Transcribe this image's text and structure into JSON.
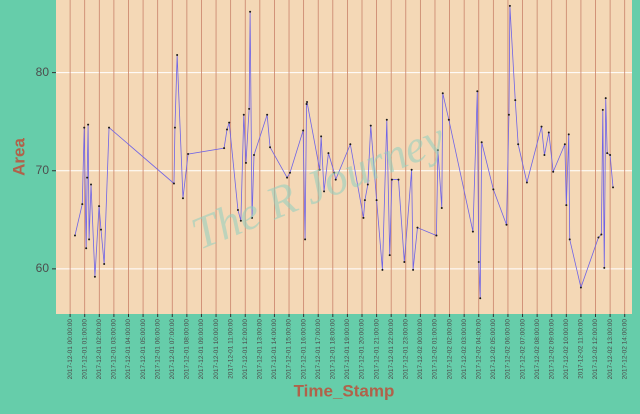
{
  "chart_data": {
    "type": "line",
    "x_label": "Time_Stamp",
    "y_label": "Area",
    "annotation": "The R Journey",
    "series": [
      {
        "name": "Area",
        "color": "#6f63e6",
        "point_color": "#1a1a1a",
        "x": [
          "2017-12-01 00:20:00",
          "2017-12-01 00:50:00",
          "2017-12-01 00:58:00",
          "2017-12-01 01:06:00",
          "2017-12-01 01:10:00",
          "2017-12-01 01:14:00",
          "2017-12-01 01:18:00",
          "2017-12-01 01:26:00",
          "2017-12-01 01:42:00",
          "2017-12-01 01:59:00",
          "2017-12-01 02:07:00",
          "2017-12-01 02:20:00",
          "2017-12-01 02:40:00",
          "2017-12-01 07:07:00",
          "2017-12-01 07:11:00",
          "2017-12-01 07:20:00",
          "2017-12-01 07:44:00",
          "2017-12-01 08:05:00",
          "2017-12-01 10:33:00",
          "2017-12-01 10:45:00",
          "2017-12-01 10:54:00",
          "2017-12-01 11:30:00",
          "2017-12-01 11:42:00",
          "2017-12-01 11:54:00",
          "2017-12-01 12:03:00",
          "2017-12-01 12:16:00",
          "2017-12-01 12:20:00",
          "2017-12-01 12:28:00",
          "2017-12-01 12:36:00",
          "2017-12-01 13:30:00",
          "2017-12-01 13:42:00",
          "2017-12-01 14:52:00",
          "2017-12-01 15:04:00",
          "2017-12-01 15:58:00",
          "2017-12-01 16:06:00",
          "2017-12-01 16:12:00",
          "2017-12-01 16:14:00",
          "2017-12-01 17:06:00",
          "2017-12-01 17:12:00",
          "2017-12-01 17:24:00",
          "2017-12-01 17:42:00",
          "2017-12-01 18:06:00",
          "2017-12-01 18:12:00",
          "2017-12-01 19:12:00",
          "2017-12-01 20:06:00",
          "2017-12-01 20:12:00",
          "2017-12-01 20:24:00",
          "2017-12-01 20:36:00",
          "2017-12-01 21:00:00",
          "2017-12-01 21:24:00",
          "2017-12-01 21:42:00",
          "2017-12-01 21:54:00",
          "2017-12-01 22:03:00",
          "2017-12-01 22:30:00",
          "2017-12-01 22:54:00",
          "2017-12-01 23:24:00",
          "2017-12-01 23:30:00",
          "2017-12-01 23:48:00",
          "2017-12-02 01:06:00",
          "2017-12-02 01:12:00",
          "2017-12-02 01:28:00",
          "2017-12-02 01:32:00",
          "2017-12-02 01:57:00",
          "2017-12-02 03:36:00",
          "2017-12-02 03:54:00",
          "2017-12-02 04:00:00",
          "2017-12-02 04:06:00",
          "2017-12-02 04:12:00",
          "2017-12-02 05:00:00",
          "2017-12-02 05:54:00",
          "2017-12-02 06:04:00",
          "2017-12-02 06:08:00",
          "2017-12-02 06:30:00",
          "2017-12-02 06:42:00",
          "2017-12-02 07:18:00",
          "2017-12-02 08:18:00",
          "2017-12-02 08:30:00",
          "2017-12-02 08:48:00",
          "2017-12-02 09:06:00",
          "2017-12-02 09:54:00",
          "2017-12-02 10:00:00",
          "2017-12-02 10:10:00",
          "2017-12-02 10:14:00",
          "2017-12-02 11:00:00",
          "2017-12-02 12:12:00",
          "2017-12-02 12:24:00",
          "2017-12-02 12:30:00",
          "2017-12-02 12:36:00",
          "2017-12-02 12:42:00",
          "2017-12-02 12:48:00",
          "2017-12-02 13:00:00",
          "2017-12-02 13:12:00"
        ],
        "values": [
          63.4,
          66.6,
          74.4,
          62.1,
          69.3,
          74.7,
          63,
          68.6,
          59.2,
          66.4,
          64,
          60.5,
          74.4,
          68.7,
          74.4,
          81.8,
          67.2,
          71.7,
          72.3,
          74.2,
          74.9,
          66,
          64.9,
          75.7,
          70.8,
          76.3,
          86.2,
          65.2,
          71.6,
          75.7,
          72.4,
          69.3,
          69.8,
          74.1,
          63,
          76.8,
          77,
          70.1,
          73.5,
          67.9,
          71.8,
          69.8,
          69.1,
          72.7,
          65.2,
          67,
          68.6,
          74.6,
          67,
          59.9,
          75.2,
          61.4,
          69.1,
          69.1,
          60.7,
          70.1,
          59.9,
          64.2,
          63.4,
          72.1,
          66.2,
          77.9,
          75.2,
          63.8,
          78.1,
          60.7,
          57,
          72.9,
          68.1,
          64.5,
          75.7,
          86.8,
          77.2,
          72.7,
          68.8,
          74.5,
          71.6,
          73.9,
          69.9,
          72.7,
          66.5,
          73.7,
          63,
          58.1,
          63.2,
          63.5,
          76.2,
          60.1,
          77.4,
          71.8,
          71.6,
          68.3
        ]
      }
    ],
    "xlim": [
      "2017-11-30 23:02:00",
      "2017-12-02 14:30:00"
    ],
    "xticks": [
      "2017-12-01 00:00:00",
      "2017-12-01 01:00:00",
      "2017-12-01 02:00:00",
      "2017-12-01 03:00:00",
      "2017-12-01 04:00:00",
      "2017-12-01 05:00:00",
      "2017-12-01 06:00:00",
      "2017-12-01 07:00:00",
      "2017-12-01 08:00:00",
      "2017-12-01 09:00:00",
      "2017-12-01 10:00:00",
      "2017-12-01 11:00:00",
      "2017-12-01 12:00:00",
      "2017-12-01 13:00:00",
      "2017-12-01 14:00:00",
      "2017-12-01 15:00:00",
      "2017-12-01 16:00:00",
      "2017-12-01 17:00:00",
      "2017-12-01 18:00:00",
      "2017-12-01 19:00:00",
      "2017-12-01 20:00:00",
      "2017-12-01 21:00:00",
      "2017-12-01 22:00:00",
      "2017-12-01 23:00:00",
      "2017-12-02 00:00:00",
      "2017-12-02 01:00:00",
      "2017-12-02 02:00:00",
      "2017-12-02 03:00:00",
      "2017-12-02 04:00:00",
      "2017-12-02 05:00:00",
      "2017-12-02 06:00:00",
      "2017-12-02 07:00:00",
      "2017-12-02 08:00:00",
      "2017-12-02 09:00:00",
      "2017-12-02 10:00:00",
      "2017-12-02 11:00:00",
      "2017-12-02 12:00:00",
      "2017-12-02 13:00:00",
      "2017-12-02 14:00:00"
    ],
    "ylim": [
      55.4,
      87.4
    ],
    "yticks": [
      60,
      70,
      80
    ],
    "grid": true
  }
}
